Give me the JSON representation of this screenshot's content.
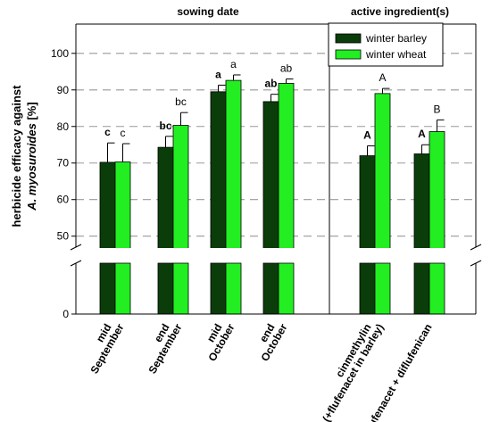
{
  "chart_data": {
    "type": "bar",
    "panels": [
      {
        "title": "sowing date",
        "categories": [
          0,
          1,
          2,
          3
        ]
      },
      {
        "title": "active ingredient(s)",
        "categories": [
          4,
          5
        ]
      }
    ],
    "categories": [
      {
        "line1": "mid",
        "line2": "September"
      },
      {
        "line1": "end",
        "line2": "September"
      },
      {
        "line1": "mid",
        "line2": "October"
      },
      {
        "line1": "end",
        "line2": "October"
      },
      {
        "line1": "cinmethylin",
        "line2": "(+flufenacet in barley)"
      },
      {
        "line1": "flufenacet + diflufenican",
        "line2": ""
      }
    ],
    "series": [
      {
        "name": "winter barley",
        "color": "#0a3d0a",
        "values": [
          70.2,
          74.3,
          89.5,
          86.8,
          72.0,
          72.5
        ],
        "errors": [
          5.3,
          3.0,
          1.8,
          2.0,
          2.7,
          2.5
        ],
        "letters": [
          "c",
          "bc",
          "a",
          "ab",
          "A",
          "A"
        ]
      },
      {
        "name": "winter wheat",
        "color": "#22ee22",
        "values": [
          70.3,
          80.3,
          92.6,
          91.8,
          89.0,
          78.6
        ],
        "errors": [
          5.0,
          3.5,
          1.5,
          1.2,
          1.4,
          3.2
        ],
        "letters": [
          "c",
          "bc",
          "a",
          "ab",
          "A",
          "B"
        ]
      }
    ],
    "ylabel_line1": "herbicide efficacy against",
    "ylabel_line2_italic": "A. myosuroides",
    "ylabel_line2_rest": " [%]",
    "yticks_upper": [
      "50",
      "60",
      "70",
      "80",
      "90",
      "100"
    ],
    "ytick_lower": "0",
    "ylim_upper": [
      47,
      108
    ],
    "axis_break": true,
    "grid": "dashed horizontal",
    "legend_position": "top-right"
  }
}
